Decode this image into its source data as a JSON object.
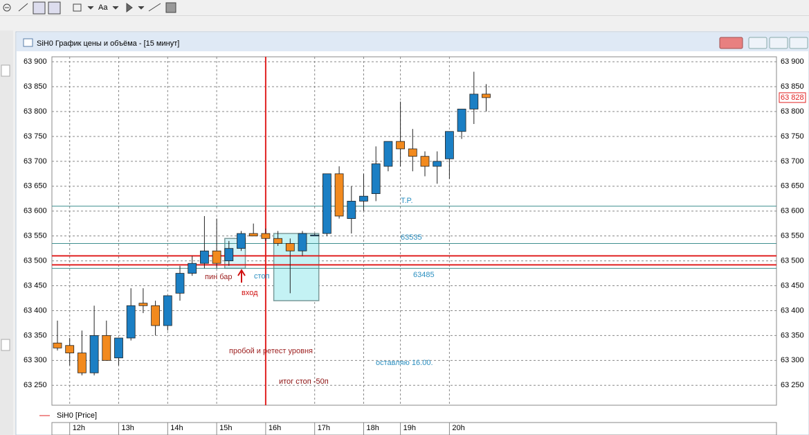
{
  "toolbar": {
    "font_button": "Aa"
  },
  "window": {
    "title": "SiH0 График цены и объёма - [15 минут]"
  },
  "legend": "SiH0 [Price]",
  "chart_data": {
    "type": "candlestick",
    "up_color": "#1b7fc4",
    "down_color": "#f28a1e",
    "categories": [
      null,
      "12h",
      null,
      null,
      null,
      "13h",
      null,
      null,
      null,
      "14h",
      null,
      null,
      null,
      "15h",
      null,
      null,
      null,
      "16h",
      null,
      null,
      null,
      "17h",
      null,
      null,
      null,
      "18h",
      null,
      null,
      "19h",
      null,
      null,
      null,
      "20h",
      null,
      null,
      null
    ],
    "open": [
      63335,
      63330,
      63315,
      63275,
      63350,
      63305,
      63345,
      63415,
      63410,
      63370,
      63435,
      63475,
      63495,
      63520,
      63500,
      63525,
      63555,
      63555,
      63545,
      63535,
      63520,
      63550,
      63555,
      63675,
      63585,
      63620,
      63635,
      63690,
      63740,
      63725,
      63710,
      63690,
      63705,
      63760,
      63805,
      63835
    ],
    "close": [
      63325,
      63315,
      63275,
      63350,
      63300,
      63345,
      63410,
      63410,
      63370,
      63430,
      63475,
      63495,
      63520,
      63495,
      63525,
      63555,
      63550,
      63545,
      63535,
      63520,
      63555,
      63552,
      63675,
      63590,
      63620,
      63630,
      63695,
      63740,
      63725,
      63710,
      63690,
      63700,
      63760,
      63805,
      63835,
      63828
    ],
    "high": [
      63380,
      63345,
      63360,
      63410,
      63380,
      63345,
      63445,
      63445,
      63420,
      63430,
      63490,
      63510,
      63590,
      63585,
      63540,
      63560,
      63575,
      63565,
      63560,
      63545,
      63560,
      63555,
      63675,
      63690,
      63650,
      63675,
      63730,
      63740,
      63820,
      63765,
      63720,
      63720,
      63760,
      63805,
      63880,
      63855
    ],
    "low": [
      63320,
      63290,
      63270,
      63270,
      63300,
      63290,
      63340,
      63395,
      63350,
      63360,
      63420,
      63470,
      63485,
      63485,
      63490,
      63520,
      63550,
      63540,
      63530,
      63435,
      63510,
      63550,
      63550,
      63585,
      63555,
      63600,
      63620,
      63680,
      63690,
      63680,
      63670,
      63655,
      63665,
      63745,
      63775,
      63800
    ],
    "ylim": [
      63210,
      63910
    ],
    "yticks": [
      {
        "value": 63250,
        "label": "63 250"
      },
      {
        "value": 63300,
        "label": "63 300"
      },
      {
        "value": 63350,
        "label": "63 350"
      },
      {
        "value": 63400,
        "label": "63 400"
      },
      {
        "value": 63450,
        "label": "63 450"
      },
      {
        "value": 63500,
        "label": "63 500"
      },
      {
        "value": 63550,
        "label": "63 550"
      },
      {
        "value": 63600,
        "label": "63 600"
      },
      {
        "value": 63650,
        "label": "63 650"
      },
      {
        "value": 63700,
        "label": "63 700"
      },
      {
        "value": 63750,
        "label": "63 750"
      },
      {
        "value": 63800,
        "label": "63 800"
      },
      {
        "value": 63850,
        "label": "63 850"
      },
      {
        "value": 63900,
        "label": "63 900"
      }
    ],
    "grid": true,
    "last_price": {
      "value": 63828,
      "label": "63 828",
      "color": "#e02020"
    },
    "levels": [
      {
        "value": 63610,
        "color": "#3f8f8f"
      },
      {
        "value": 63535,
        "color": "#3f8f8f"
      },
      {
        "value": 63485,
        "color": "#3f8f8f"
      },
      {
        "value": 63510,
        "color": "#e02020"
      },
      {
        "value": 63492,
        "color": "#e02020"
      }
    ],
    "zones": [
      {
        "top": 63545,
        "bottom": 63485
      },
      {
        "top": 63555,
        "bottom": 63420
      }
    ],
    "annotations": [
      {
        "text": "T.P.",
        "color": "#2b8fc0"
      },
      {
        "text": "63535",
        "color": "#2b8fc0"
      },
      {
        "text": "63485",
        "color": "#2b8fc0"
      },
      {
        "text": "пин бар",
        "color": "#9b1c1c"
      },
      {
        "text": "стоп",
        "color": "#2b8fc0"
      },
      {
        "text": "вход",
        "color": "#d01010"
      },
      {
        "text": "пробой и ретест уровня",
        "color": "#9b1c1c"
      },
      {
        "text": "оставляю 16.00.",
        "color": "#2b8fc0"
      },
      {
        "text": "итог стоп -50п",
        "color": "#8b0e0e"
      }
    ]
  }
}
